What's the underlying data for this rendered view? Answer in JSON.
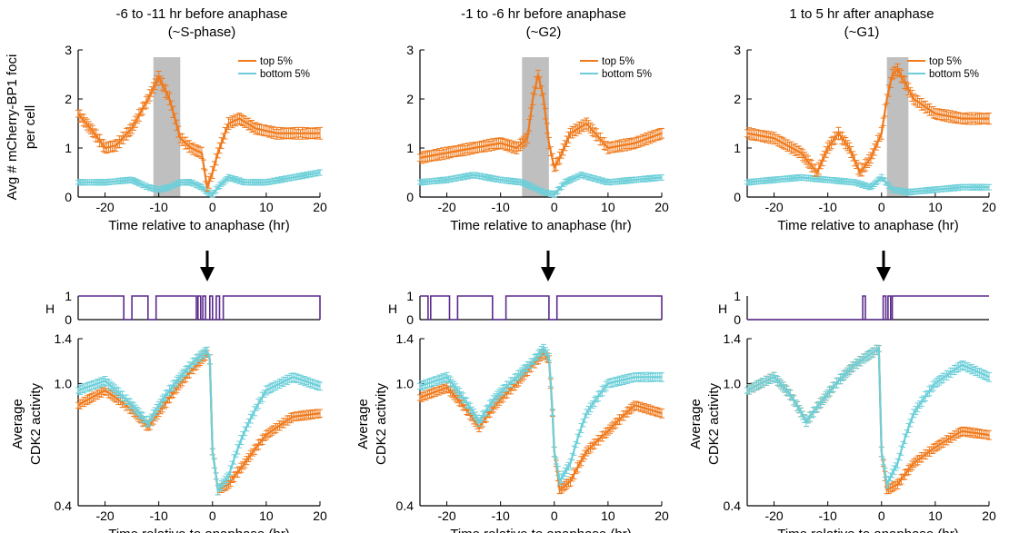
{
  "colors": {
    "top": "#f07a1c",
    "bottom": "#6ccfd9",
    "binary": "#5b2a8e",
    "shade": "#bfbfbf"
  },
  "panels": [
    {
      "title_line1": "-6 to -11 hr before anaphase",
      "title_line2": "(~S-phase)"
    },
    {
      "title_line1": "-1 to -6 hr before anaphase",
      "title_line2": "(~G2)"
    },
    {
      "title_line1": "1 to 5 hr after anaphase",
      "title_line2": "(~G1)"
    }
  ],
  "labels": {
    "foci_ylabel_line1": "Avg # mCherry-BP1 foci",
    "foci_ylabel_line2": "per cell",
    "cdk_ylabel_line1": "Average",
    "cdk_ylabel_line2": "CDK2 activity",
    "xlabel": "Time relative to anaphase (hr)",
    "h_label": "H"
  },
  "chart_data": [
    {
      "type": "line",
      "panel": 0,
      "row": "foci",
      "xlim": [
        -25,
        20
      ],
      "ylim": [
        0,
        3
      ],
      "xticks": [
        -20,
        -10,
        0,
        10,
        20
      ],
      "yticks": [
        0,
        1,
        2,
        3
      ],
      "shaded_x": [
        -11,
        -6
      ],
      "legend": [
        "top 5%",
        "bottom 5%"
      ],
      "legend_position": "top-right",
      "series": [
        {
          "name": "top 5%",
          "x": [
            -25,
            -22,
            -20,
            -18,
            -15,
            -12,
            -10,
            -8,
            -6,
            -4,
            -2,
            -1,
            0,
            1,
            3,
            5,
            8,
            12,
            16,
            20
          ],
          "y": [
            1.7,
            1.3,
            1.0,
            1.05,
            1.4,
            2.0,
            2.45,
            2.0,
            1.2,
            1.0,
            0.9,
            0.2,
            0.5,
            0.9,
            1.5,
            1.6,
            1.4,
            1.3,
            1.3,
            1.3
          ]
        },
        {
          "name": "bottom 5%",
          "x": [
            -25,
            -20,
            -15,
            -12,
            -10,
            -8,
            -6,
            -4,
            -2,
            -1,
            0,
            1,
            3,
            6,
            10,
            15,
            20
          ],
          "y": [
            0.3,
            0.3,
            0.35,
            0.2,
            0.15,
            0.2,
            0.3,
            0.3,
            0.2,
            0.1,
            0.05,
            0.2,
            0.4,
            0.3,
            0.3,
            0.4,
            0.5
          ]
        }
      ]
    },
    {
      "type": "line",
      "panel": 1,
      "row": "foci",
      "xlim": [
        -25,
        20
      ],
      "ylim": [
        0,
        3
      ],
      "xticks": [
        -20,
        -10,
        0,
        10,
        20
      ],
      "yticks": [
        0,
        1,
        2,
        3
      ],
      "shaded_x": [
        -6,
        -1
      ],
      "legend": [
        "top 5%",
        "bottom 5%"
      ],
      "legend_position": "top-right",
      "series": [
        {
          "name": "top 5%",
          "x": [
            -25,
            -20,
            -15,
            -10,
            -7,
            -5,
            -4,
            -3,
            -2,
            -1,
            0,
            1,
            3,
            6,
            10,
            15,
            20
          ],
          "y": [
            0.8,
            0.9,
            1.0,
            1.1,
            1.0,
            1.2,
            2.0,
            2.5,
            2.0,
            1.1,
            0.6,
            0.8,
            1.3,
            1.5,
            1.0,
            1.1,
            1.3
          ]
        },
        {
          "name": "bottom 5%",
          "x": [
            -25,
            -20,
            -15,
            -10,
            -6,
            -4,
            -2,
            0,
            2,
            5,
            10,
            15,
            20
          ],
          "y": [
            0.3,
            0.35,
            0.45,
            0.35,
            0.3,
            0.2,
            0.1,
            0.05,
            0.3,
            0.45,
            0.3,
            0.35,
            0.4
          ]
        }
      ]
    },
    {
      "type": "line",
      "panel": 2,
      "row": "foci",
      "xlim": [
        -25,
        20
      ],
      "ylim": [
        0,
        3
      ],
      "xticks": [
        -20,
        -10,
        0,
        10,
        20
      ],
      "yticks": [
        0,
        1,
        2,
        3
      ],
      "shaded_x": [
        1,
        5
      ],
      "legend": [
        "top 5%",
        "bottom 5%"
      ],
      "legend_position": "top-right",
      "series": [
        {
          "name": "top 5%",
          "x": [
            -25,
            -20,
            -15,
            -12,
            -10,
            -8,
            -6,
            -4,
            -2,
            0,
            1,
            2,
            3,
            4,
            6,
            10,
            15,
            20
          ],
          "y": [
            1.3,
            1.2,
            0.9,
            0.5,
            1.0,
            1.3,
            1.0,
            0.5,
            0.8,
            1.3,
            2.0,
            2.5,
            2.6,
            2.4,
            2.0,
            1.7,
            1.6,
            1.6
          ]
        },
        {
          "name": "bottom 5%",
          "x": [
            -25,
            -20,
            -15,
            -10,
            -5,
            -2,
            0,
            2,
            5,
            10,
            15,
            20
          ],
          "y": [
            0.3,
            0.35,
            0.4,
            0.35,
            0.3,
            0.2,
            0.4,
            0.15,
            0.1,
            0.15,
            0.2,
            0.2
          ]
        }
      ]
    },
    {
      "type": "line",
      "panel": 0,
      "row": "binary",
      "xlim": [
        -25,
        20
      ],
      "ylim": [
        0,
        1
      ],
      "yticks": [
        0,
        1
      ],
      "series": [
        {
          "name": "H",
          "x": [
            -25,
            -17,
            -16.5,
            -15.5,
            -15,
            -12.5,
            -12,
            -11,
            -10.5,
            -3.5,
            -3,
            -2.7,
            -2.2,
            -1.8,
            -1.3,
            -0.5,
            0,
            0.7,
            1.3,
            2,
            2.5,
            19.5,
            20
          ],
          "y": [
            1,
            1,
            0,
            0,
            1,
            1,
            0,
            0,
            1,
            1,
            0,
            1,
            0,
            1,
            0,
            1,
            0,
            1,
            0,
            1,
            1,
            1,
            0
          ]
        }
      ]
    },
    {
      "type": "line",
      "panel": 1,
      "row": "binary",
      "xlim": [
        -25,
        20
      ],
      "ylim": [
        0,
        1
      ],
      "yticks": [
        0,
        1
      ],
      "series": [
        {
          "name": "H",
          "x": [
            -25,
            -24.5,
            -23.5,
            -23,
            -20,
            -19.5,
            -18.5,
            -18,
            -12,
            -11.5,
            -9.5,
            -9,
            -1.5,
            -1,
            0,
            0.5,
            19.5,
            20
          ],
          "y": [
            1,
            1,
            0,
            1,
            1,
            0,
            0,
            1,
            1,
            0,
            0,
            1,
            1,
            0,
            0,
            1,
            1,
            0
          ]
        }
      ]
    },
    {
      "type": "line",
      "panel": 2,
      "row": "binary",
      "xlim": [
        -25,
        20
      ],
      "ylim": [
        0,
        1
      ],
      "yticks": [
        0,
        1
      ],
      "series": [
        {
          "name": "H",
          "x": [
            -25,
            -4,
            -3.5,
            -3,
            0,
            0.3,
            0.8,
            1.2,
            1.7,
            2,
            20
          ],
          "y": [
            0,
            0,
            1,
            0,
            0,
            1,
            0,
            1,
            0,
            1,
            1
          ]
        }
      ]
    },
    {
      "type": "line",
      "panel": 0,
      "row": "cdk2",
      "xlim": [
        -25,
        20
      ],
      "ylim": [
        0.4,
        1.4
      ],
      "yscale": "log",
      "xticks": [
        -20,
        -10,
        0,
        10,
        20
      ],
      "yticks": [
        0.4,
        1.0,
        1.4
      ],
      "series": [
        {
          "name": "top 5%",
          "x": [
            -25,
            -20,
            -15,
            -12,
            -9,
            -6,
            -3,
            -1,
            -0.5,
            0,
            1,
            3,
            6,
            10,
            15,
            20
          ],
          "y": [
            0.85,
            0.95,
            0.82,
            0.72,
            0.85,
            1.0,
            1.15,
            1.25,
            1.2,
            0.6,
            0.45,
            0.47,
            0.55,
            0.68,
            0.78,
            0.8
          ]
        },
        {
          "name": "bottom 5%",
          "x": [
            -25,
            -20,
            -15,
            -12,
            -9,
            -6,
            -3,
            -1,
            -0.5,
            0,
            1,
            3,
            6,
            10,
            15,
            20
          ],
          "y": [
            0.95,
            1.02,
            0.85,
            0.74,
            0.9,
            1.05,
            1.2,
            1.28,
            1.2,
            0.6,
            0.45,
            0.5,
            0.7,
            0.95,
            1.05,
            0.98
          ]
        }
      ]
    },
    {
      "type": "line",
      "panel": 1,
      "row": "cdk2",
      "xlim": [
        -25,
        20
      ],
      "ylim": [
        0.4,
        1.4
      ],
      "yscale": "log",
      "xticks": [
        -20,
        -10,
        0,
        10,
        20
      ],
      "yticks": [
        0.4,
        1.0,
        1.4
      ],
      "series": [
        {
          "name": "top 5%",
          "x": [
            -25,
            -20,
            -17,
            -14,
            -11,
            -7,
            -4,
            -2,
            -1,
            0,
            1,
            3,
            6,
            10,
            15,
            20
          ],
          "y": [
            0.9,
            0.97,
            0.85,
            0.72,
            0.85,
            1.0,
            1.15,
            1.25,
            1.2,
            0.6,
            0.45,
            0.48,
            0.6,
            0.7,
            0.85,
            0.8
          ]
        },
        {
          "name": "bottom 5%",
          "x": [
            -25,
            -20,
            -17,
            -14,
            -11,
            -7,
            -4,
            -2,
            -1,
            0,
            1,
            3,
            6,
            10,
            15,
            20
          ],
          "y": [
            0.98,
            1.05,
            0.9,
            0.75,
            0.9,
            1.05,
            1.18,
            1.3,
            1.22,
            0.6,
            0.48,
            0.55,
            0.8,
            1.0,
            1.05,
            1.05
          ]
        }
      ]
    },
    {
      "type": "line",
      "panel": 2,
      "row": "cdk2",
      "xlim": [
        -25,
        20
      ],
      "ylim": [
        0.4,
        1.4
      ],
      "yscale": "log",
      "xticks": [
        -20,
        -10,
        0,
        10,
        20
      ],
      "yticks": [
        0.4,
        1.0,
        1.4
      ],
      "series": [
        {
          "name": "top 5%",
          "x": [
            -25,
            -20,
            -17,
            -14,
            -11,
            -8,
            -5,
            -2,
            -0.5,
            0,
            1,
            3,
            6,
            10,
            15,
            20
          ],
          "y": [
            0.95,
            1.05,
            0.92,
            0.75,
            0.88,
            1.02,
            1.15,
            1.25,
            1.3,
            0.6,
            0.45,
            0.47,
            0.55,
            0.62,
            0.7,
            0.68
          ]
        },
        {
          "name": "bottom 5%",
          "x": [
            -25,
            -20,
            -17,
            -14,
            -11,
            -8,
            -5,
            -2,
            -0.5,
            0,
            1,
            3,
            6,
            10,
            15,
            20
          ],
          "y": [
            0.95,
            1.05,
            0.92,
            0.75,
            0.88,
            1.02,
            1.15,
            1.25,
            1.3,
            0.6,
            0.47,
            0.55,
            0.8,
            1.0,
            1.15,
            1.05
          ]
        }
      ]
    }
  ]
}
